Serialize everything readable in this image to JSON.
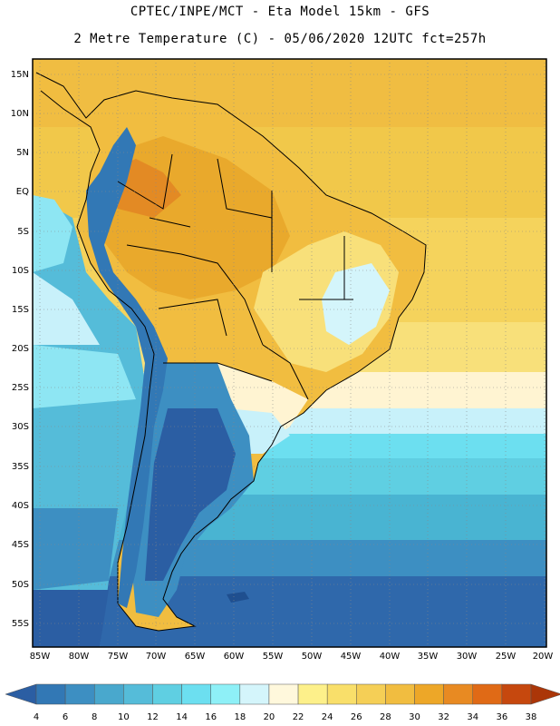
{
  "header": {
    "line1": "CPTEC/INPE/MCT -  Eta Model 15km - GFS",
    "line2": "2 Metre Temperature (C) - 05/06/2020 12UTC fct=257h"
  },
  "axes": {
    "lat_labels": [
      "15N",
      "10N",
      "5N",
      "EQ",
      "5S",
      "10S",
      "15S",
      "20S",
      "25S",
      "30S",
      "35S",
      "40S",
      "45S",
      "50S",
      "55S"
    ],
    "lon_labels": [
      "85W",
      "80W",
      "75W",
      "70W",
      "65W",
      "60W",
      "55W",
      "50W",
      "45W",
      "40W",
      "35W",
      "30W",
      "25W",
      "20W"
    ]
  },
  "colorbar": {
    "ticks": [
      "4",
      "6",
      "8",
      "10",
      "12",
      "14",
      "16",
      "18",
      "20",
      "22",
      "24",
      "26",
      "28",
      "30",
      "32",
      "34",
      "36",
      "38"
    ],
    "colors": [
      "#2b5ea3",
      "#3278b5",
      "#3d8fc2",
      "#49a8cd",
      "#55bcd9",
      "#5fcfe2",
      "#6cdff0",
      "#8ef0f7",
      "#d4f5fb",
      "#fff8dc",
      "#fdf08a",
      "#f9df6a",
      "#f5cf56",
      "#f1bd40",
      "#eda728",
      "#e88a22",
      "#e06a16",
      "#c6480e",
      "#ab3608"
    ]
  },
  "regions": {
    "north_atlantic": "#f5cf56",
    "tropical_land": "#f1bd40",
    "andes": "#3d8fc2",
    "patagonia": "#2b5ea3",
    "southern_ocean": "#3278b5",
    "mid_ocean": "#55bcd9"
  }
}
